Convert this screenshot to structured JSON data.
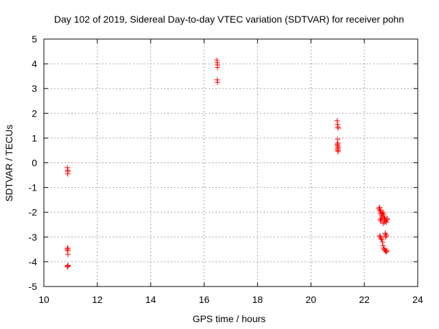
{
  "chart_data": {
    "type": "scatter",
    "title": "Day 102 of 2019, Sidereal Day-to-day VTEC variation (SDTVAR) for receiver pohn",
    "xlabel": "GPS time / hours",
    "ylabel": "SDTVAR / TECUs",
    "xlim": [
      10,
      24
    ],
    "ylim": [
      -5,
      5
    ],
    "xticks": [
      10,
      12,
      14,
      16,
      18,
      20,
      22,
      24
    ],
    "yticks": [
      -5,
      -4,
      -3,
      -2,
      -1,
      0,
      1,
      2,
      3,
      4,
      5
    ],
    "grid": true,
    "marker": "plus",
    "color": "#ff0000",
    "series": [
      {
        "name": "SDTVAR",
        "x": [
          10.88,
          10.89,
          10.89,
          10.9,
          10.88,
          10.88,
          10.89,
          10.9,
          10.9,
          10.9,
          10.88,
          10.89,
          10.9,
          16.48,
          16.49,
          16.5,
          16.5,
          16.49,
          16.5,
          20.98,
          21.0,
          21.01,
          21.02,
          21.0,
          21.01,
          20.99,
          21.0,
          21.01,
          21.02,
          21.0,
          21.01,
          21.02,
          22.55,
          22.57,
          22.58,
          22.6,
          22.62,
          22.63,
          22.65,
          22.67,
          22.6,
          22.62,
          22.64,
          22.66,
          22.68,
          22.7,
          22.72,
          22.74,
          22.76,
          22.78,
          22.8,
          22.82,
          22.85,
          22.7,
          22.75,
          22.8,
          22.85,
          22.58,
          22.6,
          22.62,
          22.65,
          22.68,
          22.7,
          22.72,
          22.75,
          22.78,
          22.8,
          22.82,
          22.85,
          22.78,
          22.8,
          22.82,
          22.8
        ],
        "y": [
          -0.2,
          -0.3,
          -0.45,
          -0.35,
          -3.45,
          -3.5,
          -3.55,
          -3.45,
          -3.7,
          -4.15,
          -4.2,
          -4.15,
          -4.18,
          4.15,
          4.05,
          3.95,
          3.85,
          3.35,
          3.25,
          1.7,
          1.55,
          1.45,
          1.4,
          0.95,
          0.8,
          0.75,
          0.7,
          0.65,
          0.6,
          0.55,
          0.5,
          0.45,
          -1.85,
          -1.8,
          -1.9,
          -1.95,
          -2.05,
          -2.0,
          -2.1,
          -2.2,
          -2.3,
          -2.35,
          -2.25,
          -2.15,
          -2.05,
          -2.0,
          -2.1,
          -2.2,
          -2.25,
          -2.3,
          -2.35,
          -2.4,
          -2.3,
          -2.45,
          -2.4,
          -2.35,
          -2.25,
          -2.95,
          -3.0,
          -3.05,
          -3.1,
          -3.2,
          -3.35,
          -3.45,
          -3.5,
          -3.55,
          -3.55,
          -3.6,
          -3.55,
          -2.85,
          -2.9,
          -2.95,
          -3.0
        ]
      }
    ]
  }
}
